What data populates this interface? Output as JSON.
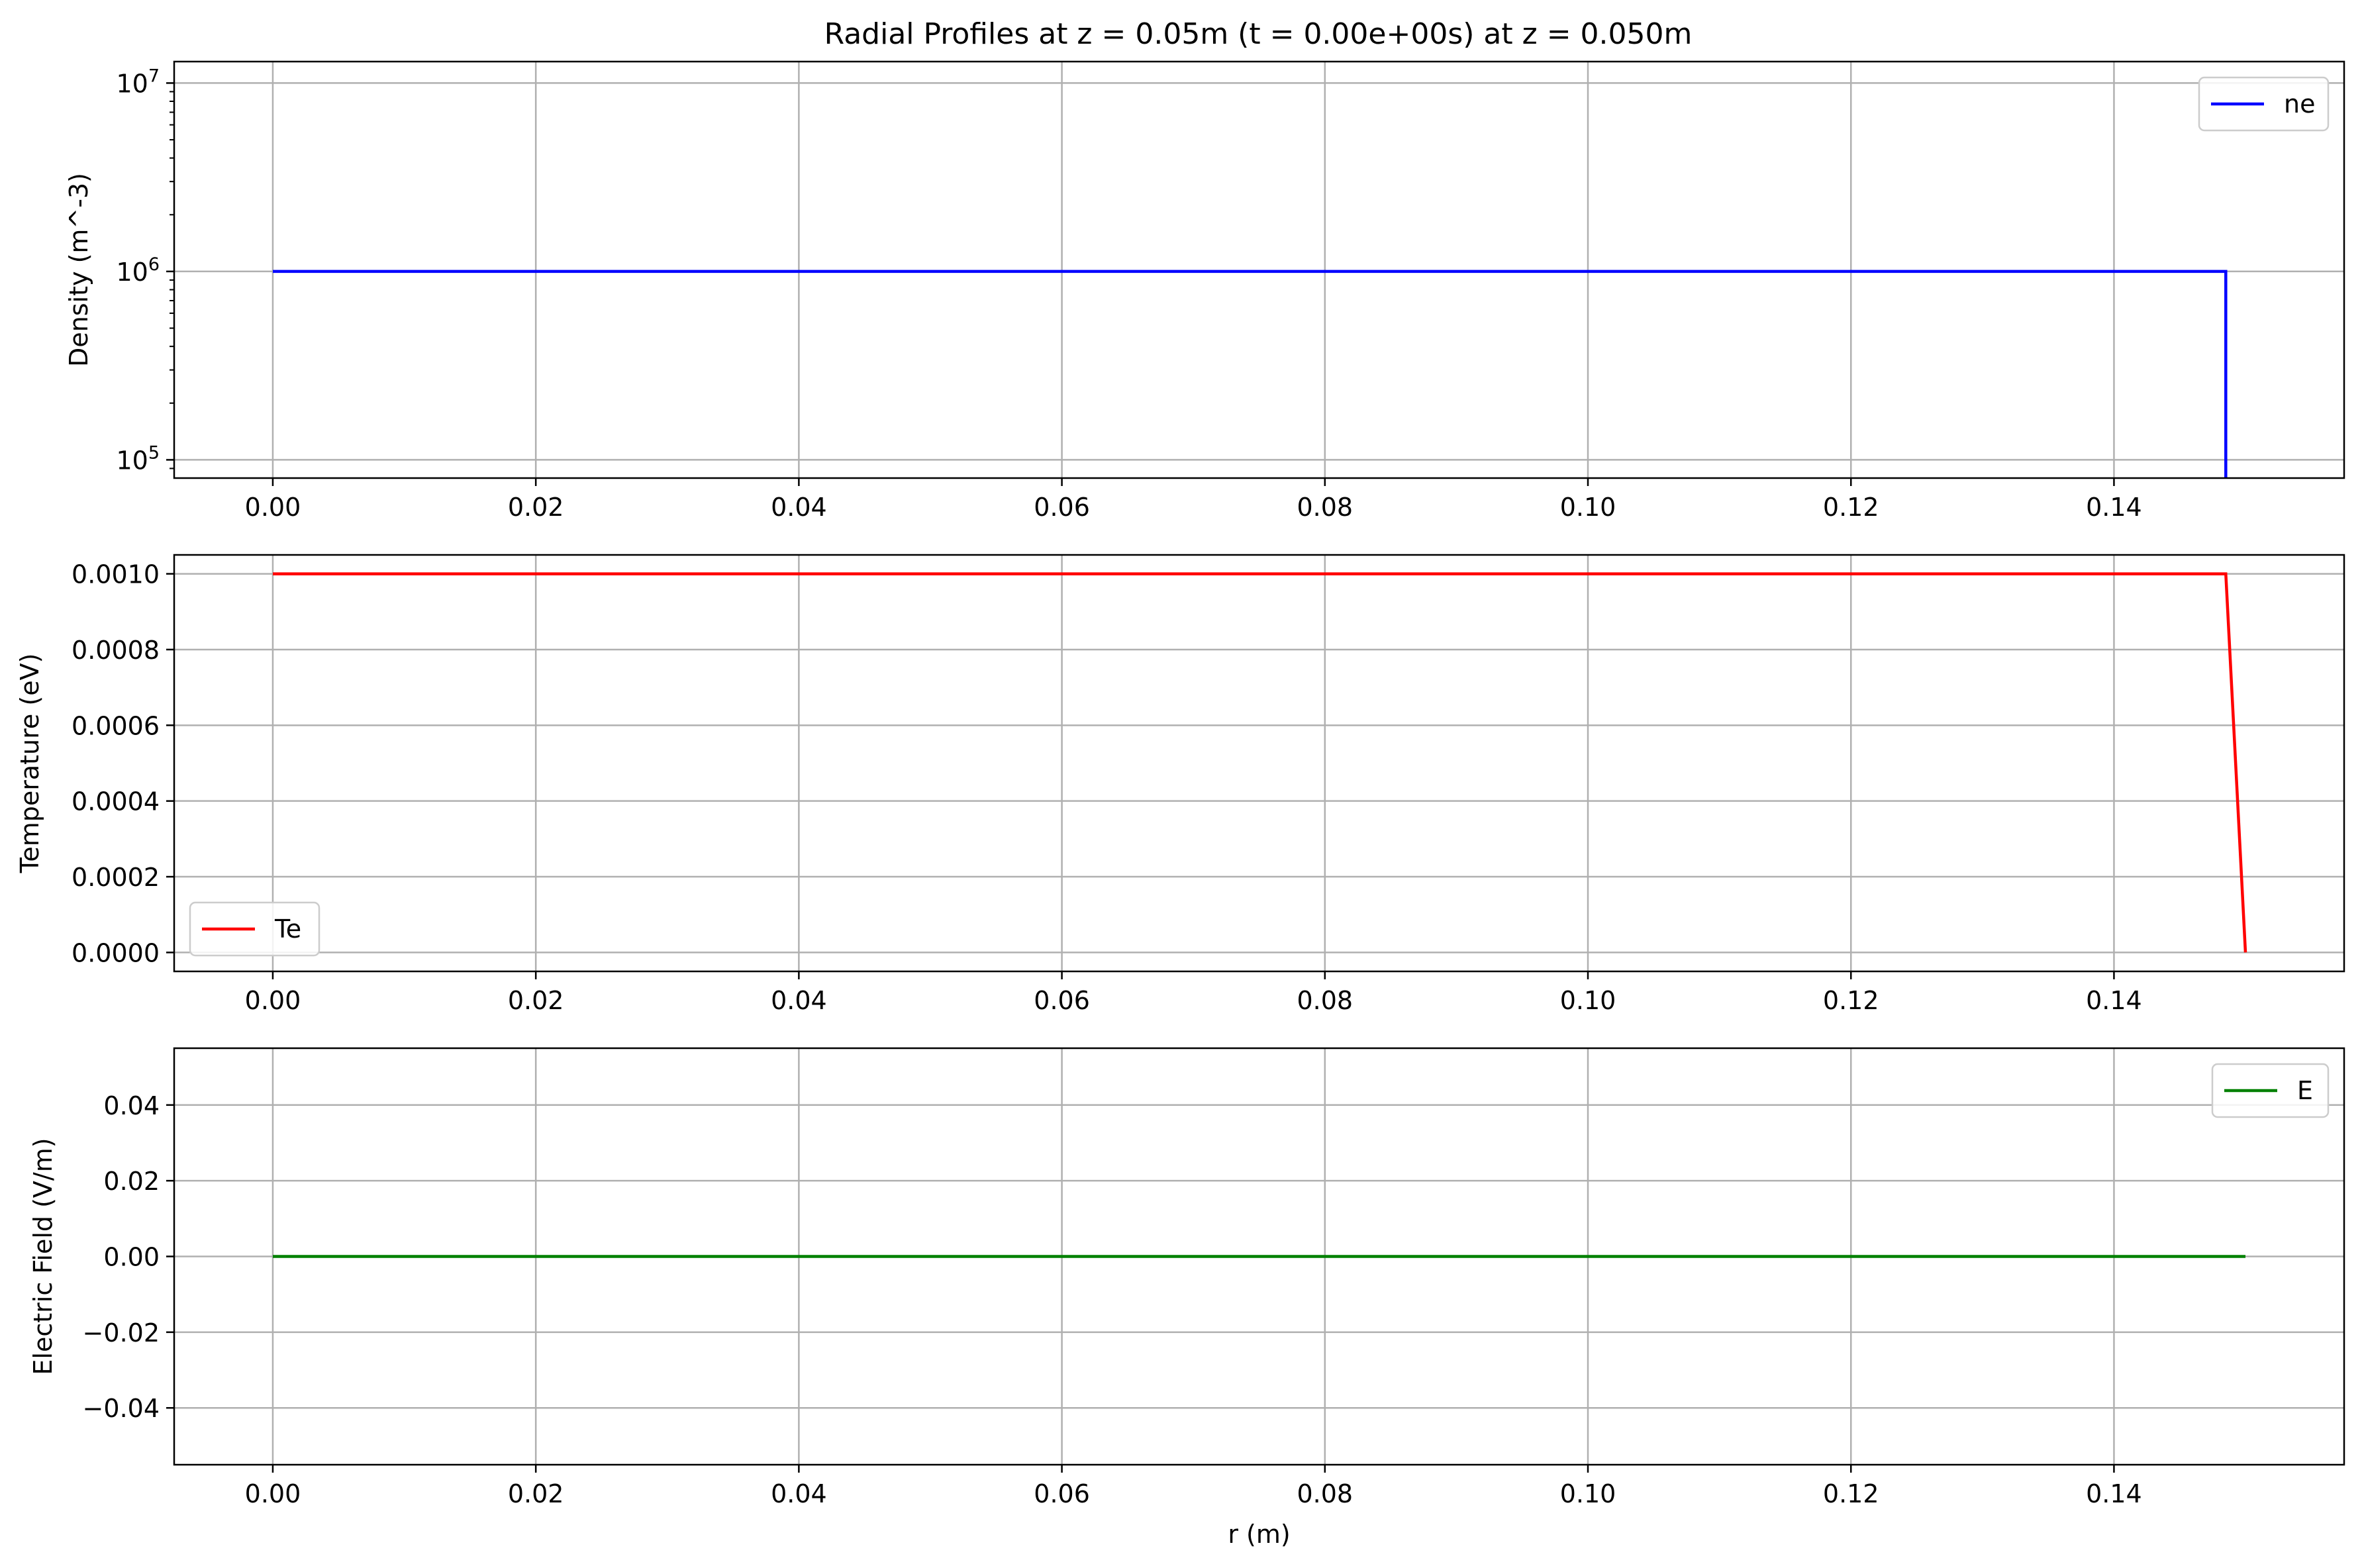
{
  "figure": {
    "title": "Radial Profiles at z = 0.05m (t = 0.00e+00s) at z = 0.050m",
    "colors": {
      "ne": "#0000ff",
      "Te": "#ff0000",
      "E": "#008000",
      "grid": "#b0b0b0",
      "axes": "#000000"
    }
  },
  "chart_data": [
    {
      "type": "line",
      "title": "",
      "xlabel": "",
      "ylabel": "Density (m^-3)",
      "yscale": "log",
      "xlim": [
        -0.0075,
        0.1575
      ],
      "ylim": [
        80000,
        13000000
      ],
      "xticks": [
        0.0,
        0.02,
        0.04,
        0.06,
        0.08,
        0.1,
        0.12,
        0.14
      ],
      "xtick_labels": [
        "0.00",
        "0.02",
        "0.04",
        "0.06",
        "0.08",
        "0.10",
        "0.12",
        "0.14"
      ],
      "yticks": [
        100000,
        1000000,
        10000000
      ],
      "ytick_labels": [
        {
          "base": "10",
          "exp": "5"
        },
        {
          "base": "10",
          "exp": "6"
        },
        {
          "base": "10",
          "exp": "7"
        }
      ],
      "grid": true,
      "legend": "upper right",
      "series": [
        {
          "name": "ne",
          "color": "#0000ff",
          "x": [
            0.0,
            0.1485,
            0.1485
          ],
          "y": [
            1000000,
            1000000,
            80000
          ]
        }
      ]
    },
    {
      "type": "line",
      "title": "",
      "xlabel": "",
      "ylabel": "Temperature (eV)",
      "yscale": "linear",
      "xlim": [
        -0.0075,
        0.1575
      ],
      "ylim": [
        -5e-05,
        0.00105
      ],
      "xticks": [
        0.0,
        0.02,
        0.04,
        0.06,
        0.08,
        0.1,
        0.12,
        0.14
      ],
      "xtick_labels": [
        "0.00",
        "0.02",
        "0.04",
        "0.06",
        "0.08",
        "0.10",
        "0.12",
        "0.14"
      ],
      "yticks": [
        0.0,
        0.0002,
        0.0004,
        0.0006,
        0.0008,
        0.001
      ],
      "ytick_labels": [
        "0.0000",
        "0.0002",
        "0.0004",
        "0.0006",
        "0.0008",
        "0.0010"
      ],
      "grid": true,
      "legend": "lower left",
      "series": [
        {
          "name": "Te",
          "color": "#ff0000",
          "x": [
            0.0,
            0.1485,
            0.15
          ],
          "y": [
            0.001,
            0.001,
            0.0
          ]
        }
      ]
    },
    {
      "type": "line",
      "title": "",
      "xlabel": "r (m)",
      "ylabel": "Electric Field (V/m)",
      "yscale": "linear",
      "xlim": [
        -0.0075,
        0.1575
      ],
      "ylim": [
        -0.055,
        0.055
      ],
      "xticks": [
        0.0,
        0.02,
        0.04,
        0.06,
        0.08,
        0.1,
        0.12,
        0.14
      ],
      "xtick_labels": [
        "0.00",
        "0.02",
        "0.04",
        "0.06",
        "0.08",
        "0.10",
        "0.12",
        "0.14"
      ],
      "yticks": [
        -0.04,
        -0.02,
        0.0,
        0.02,
        0.04
      ],
      "ytick_labels": [
        "−0.04",
        "−0.02",
        "0.00",
        "0.02",
        "0.04"
      ],
      "grid": true,
      "legend": "upper right",
      "series": [
        {
          "name": "E",
          "color": "#008000",
          "x": [
            0.0,
            0.15
          ],
          "y": [
            0.0,
            0.0
          ]
        }
      ]
    }
  ]
}
